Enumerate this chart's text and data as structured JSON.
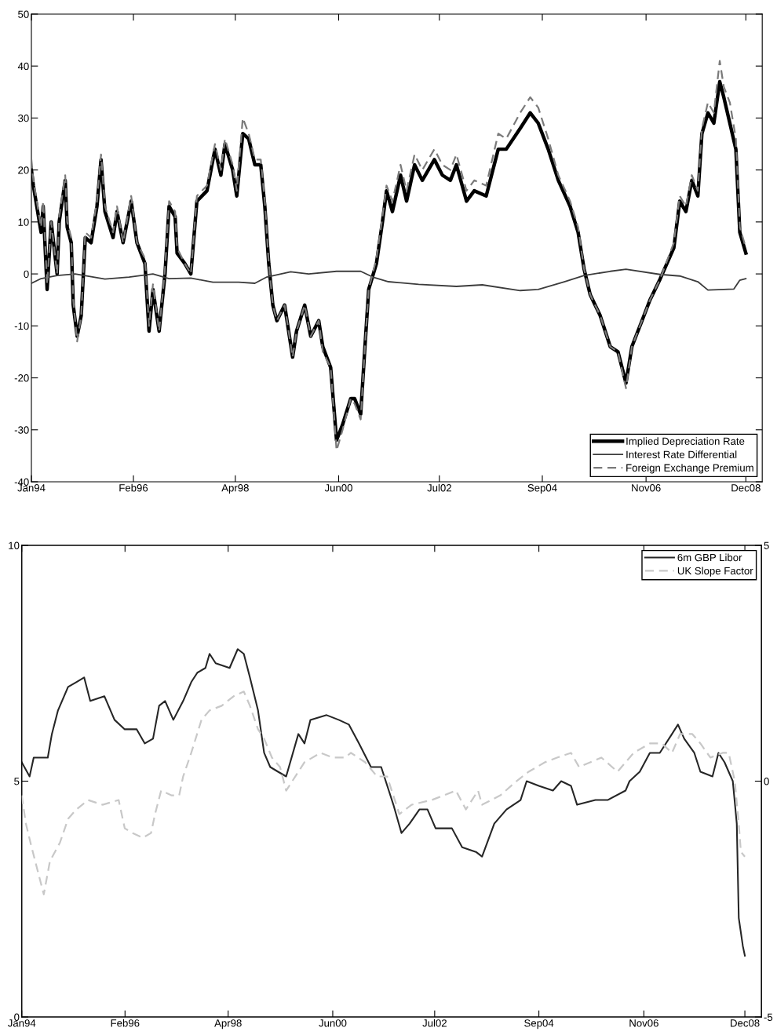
{
  "chart_data": [
    {
      "type": "line",
      "legend": "bottom right",
      "grid": false,
      "xlim": [
        "1994-01-01",
        "2009-04-05"
      ],
      "xticks": [
        {
          "value": "1994-01-01",
          "label": "Jan94"
        },
        {
          "value": "1996-02-18",
          "label": "Feb96"
        },
        {
          "value": "1998-04-05",
          "label": "Apr98"
        },
        {
          "value": "2000-06-01",
          "label": "Jun00"
        },
        {
          "value": "2002-07-09",
          "label": "Jul02"
        },
        {
          "value": "2004-09-01",
          "label": "Sep04"
        },
        {
          "value": "2006-11-01",
          "label": "Nov06"
        },
        {
          "value": "2008-12-01",
          "label": "Dec08"
        }
      ],
      "ylim": [
        -40,
        50
      ],
      "yticks": [
        -40,
        -30,
        -20,
        -10,
        0,
        10,
        20,
        30,
        40,
        50
      ],
      "series": [
        {
          "name": "Implied Depreciation Rate",
          "color": "#000000",
          "line_style": "solid",
          "x": [
            "1994-01-01",
            "1994-01-16",
            "1994-03-16",
            "1994-04-01",
            "1994-05-01",
            "1994-06-01",
            "1994-07-16",
            "1994-08-01",
            "1994-09-16",
            "1994-10-01",
            "1994-11-01",
            "1994-11-16",
            "1994-12-16",
            "1995-01-16",
            "1995-02-16",
            "1995-04-01",
            "1995-05-16",
            "1995-06-16",
            "1995-07-16",
            "1995-09-16",
            "1995-10-16",
            "1995-12-01",
            "1996-02-01",
            "1996-03-16",
            "1996-05-16",
            "1996-06-16",
            "1996-07-16",
            "1996-09-01",
            "1996-10-16",
            "1996-11-16",
            "1997-01-01",
            "1997-01-16",
            "1997-03-16",
            "1997-05-01",
            "1997-06-16",
            "1997-09-01",
            "1997-11-01",
            "1997-12-16",
            "1998-01-16",
            "1998-03-16",
            "1998-04-16",
            "1998-06-01",
            "1998-07-16",
            "1998-09-01",
            "1998-10-16",
            "1998-11-16",
            "1998-12-16",
            "1999-01-16",
            "1999-02-16",
            "1999-04-16",
            "1999-06-16",
            "1999-07-16",
            "1999-09-16",
            "1999-11-01",
            "2000-01-01",
            "2000-02-01",
            "2000-04-01",
            "2000-05-16",
            "2000-07-01",
            "2000-09-01",
            "2000-10-01",
            "2000-11-16",
            "2000-12-16",
            "2001-01-16",
            "2001-03-16",
            "2001-05-01",
            "2001-06-01",
            "2001-07-16",
            "2001-09-16",
            "2001-11-01",
            "2002-01-01",
            "2002-03-01",
            "2002-06-01",
            "2002-08-01",
            "2002-10-01",
            "2002-11-16",
            "2003-02-01",
            "2003-04-01",
            "2003-07-01",
            "2003-10-01",
            "2003-12-01",
            "2004-03-16",
            "2004-06-01",
            "2004-08-01",
            "2004-10-16",
            "2005-01-01",
            "2005-04-01",
            "2005-06-01",
            "2005-07-16",
            "2005-09-01",
            "2005-11-16",
            "2006-02-01",
            "2006-04-01",
            "2006-06-01",
            "2006-07-16",
            "2006-10-01",
            "2006-12-01",
            "2007-02-16",
            "2007-06-01",
            "2007-07-16",
            "2007-09-01",
            "2007-10-16",
            "2007-12-01",
            "2008-01-01",
            "2008-02-16",
            "2008-04-01",
            "2008-05-16",
            "2008-06-16",
            "2008-08-01",
            "2008-09-16",
            "2008-10-16",
            "2008-12-01"
          ],
          "values": [
            20,
            17,
            8,
            13,
            -3,
            10,
            0,
            10,
            18,
            9,
            6,
            -6,
            -12,
            -8,
            7,
            6,
            13,
            22,
            12,
            7,
            12,
            6,
            14,
            6,
            2,
            -11,
            -3,
            -11,
            0,
            13,
            11,
            4,
            2,
            0,
            14,
            16,
            24,
            19,
            25,
            20,
            15,
            27,
            26,
            21,
            21,
            13,
            2,
            -6,
            -9,
            -6,
            -16,
            -11,
            -6,
            -12,
            -9,
            -14,
            -18,
            -32,
            -29,
            -24,
            -24,
            -27,
            -15,
            -3,
            2,
            10,
            16,
            12,
            19,
            14,
            21,
            18,
            22,
            19,
            18,
            21,
            14,
            16,
            15,
            24,
            24,
            28,
            31,
            29,
            24,
            18,
            13,
            8,
            1,
            -4,
            -8,
            -14,
            -15,
            -21,
            -14,
            -9,
            -5,
            -1,
            5,
            14,
            12,
            18,
            15,
            27,
            31,
            29,
            37,
            34,
            29,
            24,
            8,
            4
          ]
        },
        {
          "name": "Interest Rate Differential",
          "color": "#3c3c3c",
          "line_style": "solid",
          "x": [
            "1994-01-01",
            "1994-03-16",
            "1994-07-16",
            "1994-12-01",
            "1995-07-16",
            "1996-01-16",
            "1996-07-16",
            "1996-11-16",
            "1997-05-01",
            "1997-10-16",
            "1998-05-01",
            "1998-09-01",
            "1998-12-01",
            "1999-06-01",
            "1999-10-16",
            "2000-05-16",
            "2000-11-16",
            "2001-02-16",
            "2001-06-16",
            "2002-02-01",
            "2002-11-16",
            "2003-06-01",
            "2004-03-16",
            "2004-08-01",
            "2005-02-16",
            "2005-07-16",
            "2006-02-01",
            "2006-06-01",
            "2007-02-16",
            "2007-07-16",
            "2007-12-01",
            "2008-02-16",
            "2008-09-01",
            "2008-10-16",
            "2008-12-01"
          ],
          "values": [
            -1.8,
            -0.9,
            -0.3,
            0,
            -1,
            -0.6,
            0,
            -0.9,
            -0.8,
            -1.6,
            -1.6,
            -1.8,
            -0.6,
            0.4,
            0,
            0.5,
            0.5,
            -0.6,
            -1.5,
            -2,
            -2.4,
            -2.1,
            -3.2,
            -3,
            -1.5,
            -0.3,
            0.5,
            0.9,
            -0.1,
            -0.4,
            -1.5,
            -3.1,
            -2.9,
            -1.2,
            -0.9
          ]
        },
        {
          "name": "Foreign Exchange Premium",
          "color": "#7a7a7a",
          "line_style": "dashed",
          "x": [
            "1994-01-01",
            "1994-01-16",
            "1994-03-16",
            "1994-04-01",
            "1994-05-01",
            "1994-06-01",
            "1994-07-16",
            "1994-08-01",
            "1994-09-16",
            "1994-10-01",
            "1994-11-01",
            "1994-11-16",
            "1994-12-16",
            "1995-01-16",
            "1995-02-16",
            "1995-04-01",
            "1995-05-16",
            "1995-06-16",
            "1995-07-16",
            "1995-09-16",
            "1995-10-16",
            "1995-12-01",
            "1996-02-01",
            "1996-03-16",
            "1996-05-16",
            "1996-06-16",
            "1996-07-16",
            "1996-09-01",
            "1996-10-16",
            "1996-11-16",
            "1997-01-01",
            "1997-01-16",
            "1997-03-16",
            "1997-05-01",
            "1997-06-16",
            "1997-09-01",
            "1997-11-01",
            "1997-12-16",
            "1998-01-16",
            "1998-03-16",
            "1998-04-16",
            "1998-06-01",
            "1998-07-16",
            "1998-09-01",
            "1998-10-16",
            "1998-11-16",
            "1998-12-16",
            "1999-01-16",
            "1999-02-16",
            "1999-04-16",
            "1999-06-16",
            "1999-07-16",
            "1999-09-16",
            "1999-11-01",
            "2000-01-01",
            "2000-02-01",
            "2000-04-01",
            "2000-05-16",
            "2000-07-01",
            "2000-09-01",
            "2000-10-01",
            "2000-11-16",
            "2000-12-16",
            "2001-01-16",
            "2001-03-16",
            "2001-05-01",
            "2001-06-01",
            "2001-07-16",
            "2001-09-16",
            "2001-11-01",
            "2002-01-01",
            "2002-03-01",
            "2002-06-01",
            "2002-08-01",
            "2002-10-01",
            "2002-11-16",
            "2003-02-01",
            "2003-04-01",
            "2003-07-01",
            "2003-10-01",
            "2003-12-01",
            "2004-03-16",
            "2004-06-01",
            "2004-08-01",
            "2004-10-16",
            "2005-01-01",
            "2005-04-01",
            "2005-06-01",
            "2005-07-16",
            "2005-09-01",
            "2005-11-16",
            "2006-02-01",
            "2006-04-01",
            "2006-06-01",
            "2006-07-16",
            "2006-10-01",
            "2006-12-01",
            "2007-02-16",
            "2007-06-01",
            "2007-07-16",
            "2007-09-01",
            "2007-10-16",
            "2007-12-01",
            "2008-01-01",
            "2008-02-16",
            "2008-04-01",
            "2008-05-16",
            "2008-06-16",
            "2008-08-01",
            "2008-09-16",
            "2008-10-16",
            "2008-12-01"
          ],
          "values": [
            22,
            18,
            9,
            14,
            -2,
            10,
            0,
            11,
            19,
            10,
            7,
            -5,
            -13,
            -8,
            8,
            7,
            14,
            23,
            13,
            8,
            13,
            6,
            15,
            6,
            3,
            -10,
            -2,
            -11,
            1,
            14,
            12,
            5,
            2,
            0,
            15,
            17,
            25,
            20,
            26,
            21,
            16,
            30,
            27,
            22,
            22,
            14,
            2,
            -6,
            -9,
            -6,
            -16,
            -11,
            -6,
            -12,
            -9,
            -15,
            -18,
            -34,
            -30,
            -24,
            -25,
            -28,
            -15,
            -3,
            3,
            11,
            17,
            14,
            21,
            16,
            23,
            20,
            24,
            21,
            20,
            23,
            16,
            18,
            17,
            27,
            26,
            31,
            34,
            32,
            26,
            19,
            14,
            9,
            1,
            -4,
            -8,
            -14,
            -15,
            -22,
            -14,
            -9,
            -5,
            -1,
            6,
            15,
            13,
            19,
            16,
            28,
            33,
            31,
            41,
            36,
            33,
            26,
            9,
            5
          ]
        }
      ]
    },
    {
      "type": "line",
      "legend": "top right",
      "grid": false,
      "xlim": [
        "1994-01-01",
        "2009-04-05"
      ],
      "xticks": [
        {
          "value": "1994-01-01",
          "label": "Jan94"
        },
        {
          "value": "1996-02-18",
          "label": "Feb96"
        },
        {
          "value": "1998-04-05",
          "label": "Apr98"
        },
        {
          "value": "2000-06-01",
          "label": "Jun00"
        },
        {
          "value": "2002-07-09",
          "label": "Jul02"
        },
        {
          "value": "2004-09-01",
          "label": "Sep04"
        },
        {
          "value": "2006-11-01",
          "label": "Nov06"
        },
        {
          "value": "2008-12-01",
          "label": "Dec08"
        }
      ],
      "ylim": [
        0,
        10
      ],
      "yticks": [
        0,
        5,
        10
      ],
      "y2lim": [
        -5,
        5
      ],
      "y2ticks": [
        -5,
        0,
        5
      ],
      "series": [
        {
          "name": "6m GBP Libor",
          "color": "#262626",
          "line_style": "solid",
          "x": [
            "1994-01-01",
            "1994-03-01",
            "1994-04-01",
            "1994-07-16",
            "1994-08-16",
            "1994-10-01",
            "1994-12-16",
            "1995-02-16",
            "1995-04-16",
            "1995-06-01",
            "1995-09-16",
            "1995-12-01",
            "1996-02-16",
            "1996-05-16",
            "1996-07-16",
            "1996-09-16",
            "1996-11-01",
            "1996-12-16",
            "1997-02-16",
            "1997-05-01",
            "1997-07-01",
            "1997-08-16",
            "1997-10-16",
            "1997-11-16",
            "1998-01-01",
            "1998-04-16",
            "1998-06-16",
            "1998-08-01",
            "1998-09-16",
            "1998-11-16",
            "1999-01-01",
            "1999-02-16",
            "1999-04-16",
            "1999-06-16",
            "1999-09-16",
            "1999-11-01",
            "1999-12-16",
            "2000-04-16",
            "2000-07-16",
            "2000-10-01",
            "2000-12-16",
            "2001-03-16",
            "2001-06-01",
            "2001-09-01",
            "2001-11-01",
            "2002-01-01",
            "2002-03-16",
            "2002-05-16",
            "2002-07-16",
            "2002-11-16",
            "2003-02-01",
            "2003-05-16",
            "2003-07-01",
            "2003-10-01",
            "2004-01-01",
            "2004-04-16",
            "2004-06-01",
            "2004-09-01",
            "2004-12-16",
            "2005-02-16",
            "2005-05-01",
            "2005-06-16",
            "2005-11-01",
            "2006-02-01",
            "2006-06-16",
            "2006-07-16",
            "2006-10-01",
            "2006-12-16",
            "2007-03-01",
            "2007-06-01",
            "2007-07-16",
            "2007-09-01",
            "2007-11-16",
            "2008-01-01",
            "2008-04-01",
            "2008-05-16",
            "2008-07-01",
            "2008-09-01",
            "2008-10-01",
            "2008-10-16",
            "2008-11-16",
            "2008-12-01"
          ],
          "values": [
            5.4,
            5.1,
            5.5,
            5.5,
            6.0,
            6.5,
            7.0,
            7.1,
            7.2,
            6.7,
            6.8,
            6.3,
            6.1,
            6.1,
            5.8,
            5.9,
            6.6,
            6.7,
            6.3,
            6.7,
            7.1,
            7.3,
            7.4,
            7.7,
            7.5,
            7.4,
            7.8,
            7.7,
            7.2,
            6.5,
            5.6,
            5.3,
            5.2,
            5.1,
            6.0,
            5.8,
            6.3,
            6.4,
            6.3,
            6.2,
            5.8,
            5.3,
            5.3,
            4.5,
            3.9,
            4.1,
            4.4,
            4.4,
            4.0,
            4.0,
            3.6,
            3.5,
            3.4,
            4.1,
            4.4,
            4.6,
            5.0,
            4.9,
            4.8,
            5.0,
            4.9,
            4.5,
            4.6,
            4.6,
            4.8,
            5.0,
            5.2,
            5.6,
            5.6,
            6.0,
            6.2,
            5.9,
            5.6,
            5.2,
            5.1,
            5.6,
            5.4,
            5.0,
            4.1,
            2.1,
            1.5,
            1.3
          ]
        },
        {
          "name": "UK Slope Factor",
          "color": "#c8c8c8",
          "line_style": "dashed",
          "axis": "y2",
          "x": [
            "1994-01-01",
            "1994-02-01",
            "1994-03-16",
            "1994-05-01",
            "1994-06-16",
            "1994-08-01",
            "1994-10-16",
            "1994-12-16",
            "1995-02-16",
            "1995-05-16",
            "1995-09-01",
            "1996-01-01",
            "1996-02-16",
            "1996-04-16",
            "1996-07-01",
            "1996-09-01",
            "1996-10-01",
            "1996-11-16",
            "1997-02-01",
            "1997-04-01",
            "1997-05-01",
            "1997-07-01",
            "1997-09-16",
            "1997-11-16",
            "1998-02-16",
            "1998-05-16",
            "1998-08-01",
            "1998-09-16",
            "1998-11-16",
            "1999-01-01",
            "1999-03-01",
            "1999-05-01",
            "1999-06-16",
            "1999-08-01",
            "1999-11-01",
            "2000-03-01",
            "2000-06-01",
            "2000-09-01",
            "2000-10-16",
            "2001-02-01",
            "2001-05-01",
            "2001-07-16",
            "2001-10-16",
            "2002-01-16",
            "2002-06-16",
            "2002-09-16",
            "2002-12-16",
            "2003-03-01",
            "2003-06-01",
            "2003-07-01",
            "2003-11-16",
            "2004-03-16",
            "2004-06-16",
            "2004-10-16",
            "2005-01-16",
            "2005-05-01",
            "2005-07-01",
            "2005-12-16",
            "2006-04-16",
            "2006-08-16",
            "2006-12-16",
            "2007-03-16",
            "2007-06-01",
            "2007-08-01",
            "2007-11-01",
            "2008-01-01",
            "2008-03-16",
            "2008-06-16",
            "2008-08-01",
            "2008-09-16",
            "2008-10-16",
            "2008-11-01",
            "2008-12-01"
          ],
          "values": [
            -0.3,
            -0.9,
            -1.4,
            -1.9,
            -2.4,
            -1.7,
            -1.3,
            -0.8,
            -0.6,
            -0.4,
            -0.5,
            -0.4,
            -1.0,
            -1.1,
            -1.2,
            -1.1,
            -0.7,
            -0.2,
            -0.3,
            -0.3,
            0.1,
            0.6,
            1.3,
            1.5,
            1.6,
            1.8,
            1.9,
            1.6,
            1.1,
            0.9,
            0.5,
            0.3,
            -0.2,
            0.0,
            0.4,
            0.6,
            0.5,
            0.5,
            0.6,
            0.4,
            0.1,
            0.1,
            -0.7,
            -0.5,
            -0.4,
            -0.3,
            -0.2,
            -0.6,
            -0.2,
            -0.5,
            -0.3,
            0.0,
            0.2,
            0.4,
            0.5,
            0.6,
            0.3,
            0.5,
            0.2,
            0.6,
            0.8,
            0.8,
            0.6,
            1.0,
            1.0,
            0.8,
            0.5,
            0.6,
            0.6,
            0.0,
            -0.9,
            -1.5,
            -1.6
          ]
        }
      ]
    }
  ]
}
